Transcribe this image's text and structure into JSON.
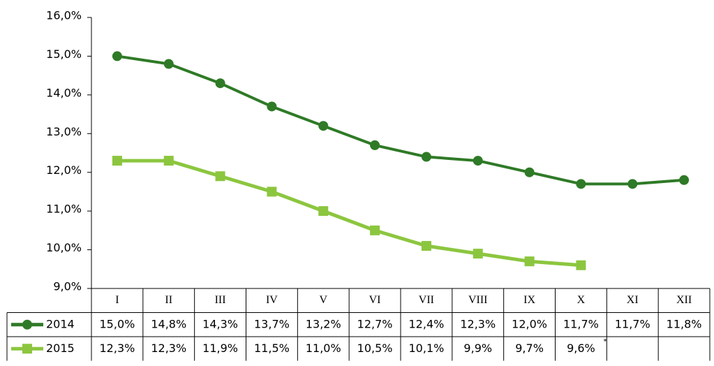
{
  "chart_data": {
    "type": "line",
    "categories": [
      "I",
      "II",
      "III",
      "IV",
      "V",
      "VI",
      "VII",
      "VIII",
      "IX",
      "X",
      "XI",
      "XII"
    ],
    "series": [
      {
        "name": "2014",
        "color": "#2f7a27",
        "marker": "circle",
        "values": [
          15.0,
          14.8,
          14.3,
          13.7,
          13.2,
          12.7,
          12.4,
          12.3,
          12.0,
          11.7,
          11.7,
          11.8
        ],
        "value_labels": [
          "15,0%",
          "14,8%",
          "14,3%",
          "13,7%",
          "13,2%",
          "12,7%",
          "12,4%",
          "12,3%",
          "12,0%",
          "11,7%",
          "11,7%",
          "11,8%"
        ]
      },
      {
        "name": "2015",
        "color": "#8cc63f",
        "marker": "square",
        "values": [
          12.3,
          12.3,
          11.9,
          11.5,
          11.0,
          10.5,
          10.1,
          9.9,
          9.7,
          9.6,
          null,
          null
        ],
        "value_labels": [
          "12,3%",
          "12,3%",
          "11,9%",
          "11,5%",
          "11,0%",
          "10,5%",
          "10,1%",
          "9,9%",
          "9,7%",
          "9,6%",
          null,
          null
        ]
      }
    ],
    "footnote_marker": "*",
    "ylim": [
      9.0,
      16.0
    ],
    "yticks": [
      {
        "value": 9.0,
        "label": "9,0%"
      },
      {
        "value": 10.0,
        "label": "10,0%"
      },
      {
        "value": 11.0,
        "label": "11,0%"
      },
      {
        "value": 12.0,
        "label": "12,0%"
      },
      {
        "value": 13.0,
        "label": "13,0%"
      },
      {
        "value": 14.0,
        "label": "14,0%"
      },
      {
        "value": 15.0,
        "label": "15,0%"
      },
      {
        "value": 16.0,
        "label": "16,0%"
      }
    ],
    "grid": false,
    "data_table": true
  }
}
